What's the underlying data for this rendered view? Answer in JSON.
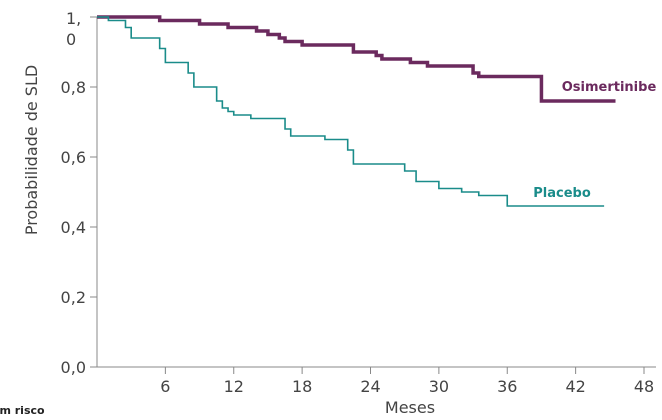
{
  "chart_data": {
    "type": "line",
    "title": "",
    "xlabel": "Meses",
    "ylabel": "Probabilidade de SLD",
    "xlim": [
      0,
      48
    ],
    "ylim": [
      0,
      1
    ],
    "x_ticks": [
      6,
      12,
      18,
      24,
      30,
      36,
      42,
      48
    ],
    "x_tick_labels": [
      "6",
      "12",
      "18",
      "24",
      "30",
      "36",
      "42",
      "48"
    ],
    "y_ticks": [
      0,
      0.2,
      0.4,
      0.6,
      0.8,
      1.0
    ],
    "y_tick_labels": [
      "0,0",
      "0,2",
      "0,4",
      "0,6",
      "0,8",
      "1,\n0"
    ],
    "grid": false,
    "step": true,
    "series": [
      {
        "name": "Osimertinibe",
        "color": "#6b2a5e",
        "x": [
          0,
          3,
          5.5,
          9,
          11.5,
          14,
          15,
          16,
          16.5,
          18,
          22,
          22.5,
          24,
          24.5,
          25,
          27.5,
          29,
          33,
          33.5,
          34,
          39,
          39.5,
          45.5
        ],
        "y": [
          1.0,
          1.0,
          0.99,
          0.98,
          0.97,
          0.96,
          0.95,
          0.94,
          0.93,
          0.92,
          0.92,
          0.9,
          0.9,
          0.89,
          0.88,
          0.87,
          0.86,
          0.84,
          0.83,
          0.83,
          0.76,
          0.76,
          0.76
        ]
      },
      {
        "name": "Placebo",
        "color": "#1a8c8a",
        "x": [
          0,
          1,
          2.5,
          3,
          5.5,
          6,
          8,
          8.5,
          10.5,
          11,
          11.5,
          12,
          13.5,
          16.5,
          17,
          20,
          22,
          22.5,
          27,
          28,
          30,
          32,
          33.5,
          36,
          44.5
        ],
        "y": [
          1.0,
          0.99,
          0.97,
          0.94,
          0.91,
          0.87,
          0.84,
          0.8,
          0.76,
          0.74,
          0.73,
          0.72,
          0.71,
          0.68,
          0.66,
          0.65,
          0.62,
          0.58,
          0.56,
          0.53,
          0.51,
          0.5,
          0.49,
          0.46,
          0.46
        ]
      }
    ],
    "footer_text": "em risco"
  }
}
